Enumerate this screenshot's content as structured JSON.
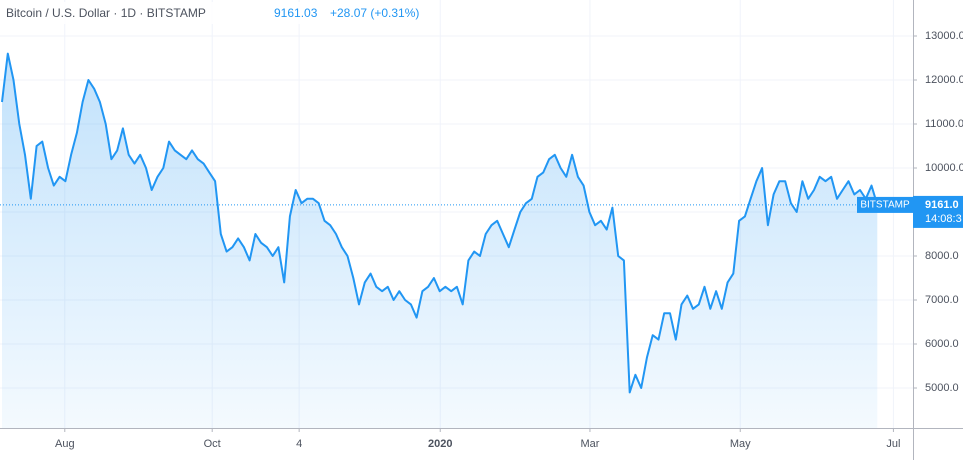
{
  "chart_data": {
    "type": "area",
    "header": {
      "symbol": "Bitcoin / U.S. Dollar · 1D · BITSTAMP",
      "price": "9161.03",
      "change": "+28.07 (+0.31%)"
    },
    "color": "#2196f3",
    "values": [
      11500,
      12600,
      12000,
      11000,
      10300,
      9300,
      10500,
      10600,
      10000,
      9600,
      9800,
      9700,
      10300,
      10800,
      11500,
      12000,
      11800,
      11500,
      11000,
      10200,
      10400,
      10900,
      10300,
      10100,
      10300,
      10000,
      9500,
      9800,
      10000,
      10600,
      10400,
      10300,
      10200,
      10400,
      10200,
      10100,
      9900,
      9700,
      8500,
      8100,
      8200,
      8400,
      8200,
      7900,
      8500,
      8300,
      8200,
      8000,
      8200,
      7400,
      8900,
      9500,
      9200,
      9300,
      9300,
      9200,
      8800,
      8700,
      8500,
      8200,
      8000,
      7500,
      6900,
      7400,
      7600,
      7300,
      7200,
      7300,
      7000,
      7200,
      7000,
      6900,
      6600,
      7200,
      7300,
      7500,
      7200,
      7300,
      7200,
      7300,
      6900,
      7900,
      8100,
      8000,
      8500,
      8700,
      8800,
      8500,
      8200,
      8600,
      9000,
      9200,
      9300,
      9800,
      9900,
      10200,
      10300,
      10000,
      9800,
      10300,
      9800,
      9600,
      9000,
      8700,
      8800,
      8600,
      9100,
      8000,
      7900,
      4900,
      5300,
      5000,
      5700,
      6200,
      6100,
      6700,
      6700,
      6100,
      6900,
      7100,
      6800,
      6900,
      7300,
      6800,
      7200,
      6800,
      7400,
      7600,
      8800,
      8900,
      9300,
      9700,
      10000,
      8700,
      9400,
      9700,
      9700,
      9200,
      9000,
      9700,
      9300,
      9500,
      9800,
      9700,
      9800,
      9300,
      9500,
      9700,
      9400,
      9500,
      9300,
      9600,
      9161.03
    ],
    "xlim": [
      -0.35,
      158.2
    ],
    "xticks": [
      {
        "value": 10.9,
        "label": "Aug"
      },
      {
        "value": 36.5,
        "label": "Oct"
      },
      {
        "value": 51.6,
        "label": "4"
      },
      {
        "value": 76.1,
        "label": "2020"
      },
      {
        "value": 102.1,
        "label": "Mar"
      },
      {
        "value": 128.2,
        "label": "May"
      },
      {
        "value": 154.8,
        "label": "Jul"
      }
    ],
    "ylim": [
      4091,
      13818
    ],
    "yticks": [
      {
        "value": 5000,
        "label": "5000.0"
      },
      {
        "value": 6000,
        "label": "6000.0"
      },
      {
        "value": 7000,
        "label": "7000.0"
      },
      {
        "value": 8000,
        "label": "8000.0"
      },
      {
        "value": 9000,
        "label": "9000.0"
      },
      {
        "value": 10000,
        "label": "10000.0"
      },
      {
        "value": 11000,
        "label": "11000.0"
      },
      {
        "value": 12000,
        "label": "12000.0"
      },
      {
        "value": 13000,
        "label": "13000.0"
      }
    ],
    "grid": true,
    "last_price": {
      "value": 9161.03,
      "label": "9161.0"
    },
    "exchange_tag": "BITSTAMP",
    "countdown": "14:08:3"
  }
}
